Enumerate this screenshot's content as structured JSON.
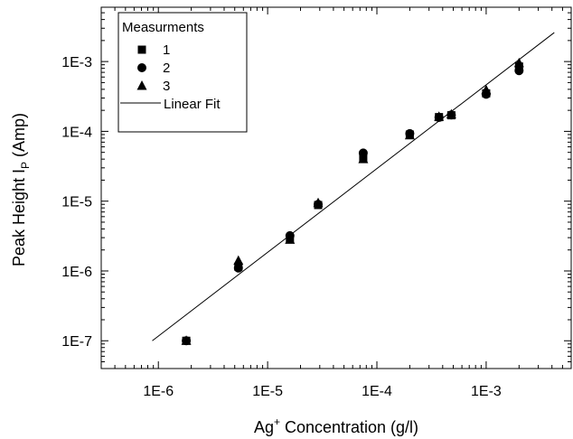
{
  "chart_data": {
    "type": "scatter",
    "title": "",
    "xlabel": {
      "base": "Ag",
      "sup": "+",
      "rest": " Concentration (g/l)"
    },
    "ylabel": {
      "main": "Peak Height  I",
      "sub": "P",
      "rest": " (Amp)"
    },
    "xscale": "log",
    "yscale": "log",
    "xlim": [
      3e-07,
      0.006
    ],
    "ylim": [
      4e-08,
      0.006
    ],
    "xticks": [
      {
        "value": 1e-06,
        "label": "1E-6"
      },
      {
        "value": 1e-05,
        "label": "1E-5"
      },
      {
        "value": 0.0001,
        "label": "1E-4"
      },
      {
        "value": 0.001,
        "label": "1E-3"
      }
    ],
    "yticks": [
      {
        "value": 1e-07,
        "label": "1E-7"
      },
      {
        "value": 1e-06,
        "label": "1E-6"
      },
      {
        "value": 1e-05,
        "label": "1E-5"
      },
      {
        "value": 0.0001,
        "label": "1E-4"
      },
      {
        "value": 0.001,
        "label": "1E-3"
      }
    ],
    "grid": false,
    "legend": {
      "title": "Measurments",
      "placement": "top-left",
      "entries": [
        {
          "label": "1",
          "marker": "square"
        },
        {
          "label": "2",
          "marker": "circle"
        },
        {
          "label": "3",
          "marker": "triangle"
        },
        {
          "label": "Linear Fit",
          "marker": "line"
        }
      ]
    },
    "series": [
      {
        "name": "1",
        "marker": "square",
        "x": [
          1.8e-06,
          5.4e-06,
          1.6e-05,
          2.9e-05,
          7.5e-05,
          0.0002,
          0.00037,
          0.00048,
          0.001,
          0.002
        ],
        "y": [
          1e-07,
          1.15e-06,
          2.9e-06,
          8.8e-06,
          4.2e-05,
          9e-05,
          0.00016,
          0.00017,
          0.00035,
          0.00085
        ]
      },
      {
        "name": "2",
        "marker": "circle",
        "x": [
          1.8e-06,
          5.4e-06,
          1.6e-05,
          2.9e-05,
          7.5e-05,
          0.0002,
          0.00037,
          0.00048,
          0.001,
          0.002
        ],
        "y": [
          1e-07,
          1.1e-06,
          3.2e-06,
          9e-06,
          4.9e-05,
          9.3e-05,
          0.000158,
          0.000172,
          0.00034,
          0.00074
        ]
      },
      {
        "name": "3",
        "marker": "triangle",
        "x": [
          1.8e-06,
          5.4e-06,
          1.6e-05,
          2.9e-05,
          7.5e-05,
          0.0002,
          0.00037,
          0.00048,
          0.001,
          0.002
        ],
        "y": [
          1e-07,
          1.4e-06,
          2.8e-06,
          9.4e-06,
          4e-05,
          8.8e-05,
          0.000162,
          0.000175,
          0.00039,
          0.00095
        ]
      }
    ],
    "fit": {
      "name": "Linear Fit",
      "x": [
        8.8e-07,
        0.0042
      ],
      "y": [
        1e-07,
        0.0026
      ]
    },
    "colors": {
      "axes": "#000000",
      "markers": "#000000",
      "background": "#ffffff"
    }
  }
}
